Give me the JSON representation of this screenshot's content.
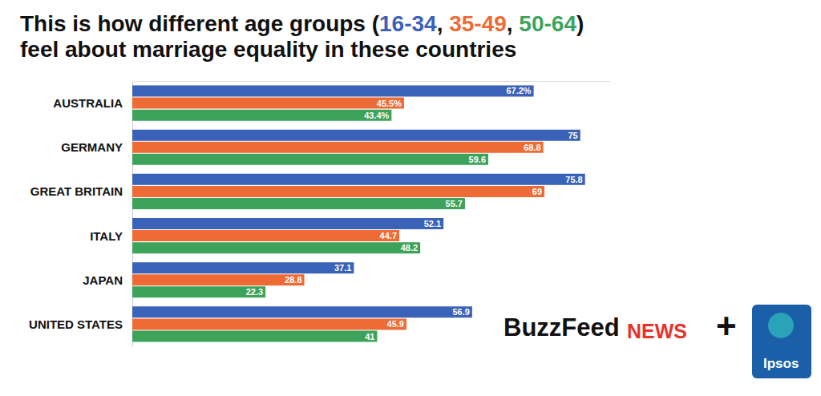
{
  "chart_data": {
    "type": "bar",
    "orientation": "horizontal",
    "title": "This is how different age groups (16-34, 35-49, 50-64)\nfeel about marriage equality in these countries",
    "categories": [
      "AUSTRALIA",
      "GERMANY",
      "GREAT BRITAIN",
      "ITALY",
      "JAPAN",
      "UNITED STATES"
    ],
    "series": [
      {
        "name": "16-34",
        "color": "#3a62b8",
        "values": [
          67.2,
          75,
          75.8,
          52.1,
          37.1,
          56.9
        ],
        "value_labels": [
          "67.2%",
          "75",
          "75.8",
          "52.1",
          "37.1",
          "56.9"
        ]
      },
      {
        "name": "35-49",
        "color": "#ee6b35",
        "values": [
          45.5,
          68.8,
          69,
          44.7,
          28.8,
          45.9
        ],
        "value_labels": [
          "45.5%",
          "68.8",
          "69",
          "44.7",
          "28.8",
          "45.9"
        ]
      },
      {
        "name": "50-64",
        "color": "#3da35a",
        "values": [
          43.4,
          59.6,
          55.7,
          48.2,
          22.3,
          41
        ],
        "value_labels": [
          "43.4%",
          "59.6",
          "55.7",
          "48.2",
          "22.3",
          "41"
        ]
      }
    ],
    "xlim": [
      0,
      80
    ],
    "grid": false,
    "data_labels": true,
    "tick_labels": "y",
    "annotations": [
      "BuzzFeed",
      "NEWS",
      "+",
      "Ipsos"
    ]
  }
}
